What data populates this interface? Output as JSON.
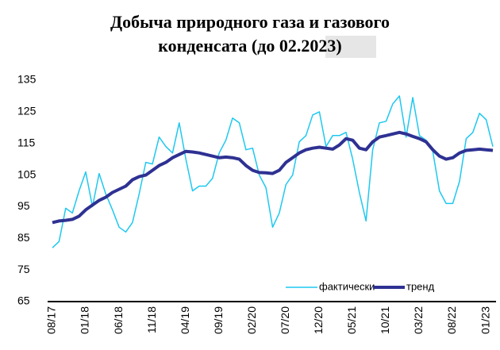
{
  "chart_data": {
    "type": "line",
    "title": [
      "Добыча природного газа и газового",
      "конденсата (до 02.2023)"
    ],
    "categories": [
      "08/17",
      null,
      null,
      null,
      null,
      "01/18",
      null,
      null,
      null,
      null,
      "06/18",
      null,
      null,
      null,
      null,
      "11/18",
      null,
      null,
      null,
      null,
      "04/19",
      null,
      null,
      null,
      null,
      "09/19",
      null,
      null,
      null,
      null,
      "02/20",
      null,
      null,
      null,
      null,
      "07/20",
      null,
      null,
      null,
      null,
      "12/20",
      null,
      null,
      null,
      null,
      "05/21",
      null,
      null,
      null,
      null,
      "10/21",
      null,
      null,
      null,
      null,
      "03/22",
      null,
      null,
      null,
      null,
      "08/22",
      null,
      null,
      null,
      null,
      "01/23",
      null
    ],
    "series": [
      {
        "name": "фактически",
        "color": "#1ec8f0",
        "width": 1.5,
        "values": [
          82,
          84,
          94.5,
          93,
          100,
          106,
          95,
          105.5,
          99,
          94,
          88.5,
          87,
          90,
          99,
          109,
          108.5,
          117,
          114,
          112,
          121.5,
          110,
          100,
          101.5,
          101.5,
          104,
          112,
          116,
          123,
          121.5,
          113,
          113.5,
          105,
          101,
          88.5,
          93,
          102,
          105,
          115.5,
          117.5,
          124,
          125,
          114,
          117.5,
          117.5,
          118.5,
          110,
          99.5,
          90.5,
          113,
          121.5,
          122,
          127.5,
          130,
          117,
          129.5,
          117.5,
          116,
          112.5,
          100,
          96,
          96,
          103,
          116.5,
          118.5,
          124.5,
          122.5,
          114
        ]
      },
      {
        "name": "тренд",
        "color": "#2e3192",
        "width": 4,
        "values": [
          90,
          90.5,
          90.7,
          91,
          92,
          94,
          95.5,
          97,
          98,
          99.5,
          100.5,
          101.5,
          103.5,
          104.5,
          105,
          106.5,
          108,
          109,
          110.5,
          111.5,
          112.5,
          112.3,
          112,
          111.5,
          111,
          110.5,
          110.7,
          110.5,
          110,
          108,
          106.5,
          105.8,
          105.7,
          105.5,
          106.5,
          109,
          110.5,
          112,
          113,
          113.5,
          113.8,
          113.5,
          113.2,
          114.5,
          116.5,
          116,
          113.5,
          113,
          115.5,
          117,
          117.5,
          118,
          118.5,
          118,
          117.2,
          116.5,
          115.5,
          113,
          111,
          110,
          110.5,
          112,
          112.8,
          113,
          113.2,
          113,
          112.8
        ]
      }
    ],
    "ylim": [
      65,
      135
    ],
    "yticks": [
      65,
      75,
      85,
      95,
      105,
      115,
      125,
      135
    ],
    "grid": false,
    "legend": "lower right"
  }
}
